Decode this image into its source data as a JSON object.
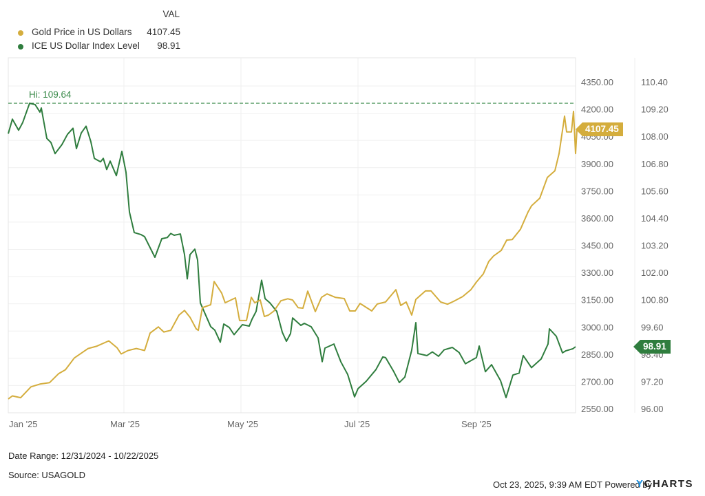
{
  "legend": {
    "header": "VAL",
    "series": [
      {
        "name": "Gold Price in US Dollars",
        "value": "4107.45",
        "color": "#d4ad3d"
      },
      {
        "name": "ICE US Dollar Index Level",
        "value": "98.91",
        "color": "#2f7d3e"
      }
    ]
  },
  "hi_label": "Hi: 109.64",
  "last_tags": {
    "gold": "4107.45",
    "usd": "98.91"
  },
  "footer": {
    "date_range": "Date Range: 12/31/2024 - 10/22/2025",
    "source": "Source: USAGOLD",
    "timestamp": "Oct 23, 2025, 9:39 AM EDT Powered by",
    "brand_y": "Y",
    "brand_rest": "CHARTS"
  },
  "chart_data": {
    "type": "line",
    "title": "",
    "x_ticks": [
      "Jan '25",
      "Mar '25",
      "May '25",
      "Jul '25",
      "Sep '25"
    ],
    "x_range": [
      "12/31/2024",
      "10/22/2025"
    ],
    "y_left": {
      "label": "Gold Price in US Dollars",
      "ticks": [
        "4350.00",
        "4200.00",
        "4050.00",
        "3900.00",
        "3750.00",
        "3600.00",
        "3450.00",
        "3300.00",
        "3150.00",
        "3000.00",
        "2850.00",
        "2700.00",
        "2550.00"
      ],
      "range": [
        2550,
        4350
      ]
    },
    "y_right": {
      "label": "ICE US Dollar Index Level",
      "ticks": [
        "110.40",
        "109.20",
        "108.00",
        "106.80",
        "105.60",
        "104.40",
        "103.20",
        "102.00",
        "100.80",
        "99.60",
        "98.40",
        "97.20",
        "96.00"
      ],
      "range": [
        96.0,
        110.4
      ]
    },
    "hi_line": {
      "series": "ICE US Dollar Index Level",
      "value": 109.64
    },
    "grid": true,
    "series": [
      {
        "name": "Gold Price in US Dollars",
        "axis": "left",
        "color": "#d4ad3d",
        "last": 4107.45,
        "x_pos": [
          12,
          18,
          30,
          45,
          58,
          72,
          85,
          95,
          108,
          118,
          128,
          140,
          158,
          170,
          176,
          186,
          198,
          210,
          218,
          230,
          238,
          248,
          260,
          268,
          276,
          285,
          288,
          294,
          306,
          311,
          322,
          327,
          342,
          348,
          358,
          365,
          370,
          378,
          384,
          390,
          398,
          408,
          418,
          425,
          433,
          440,
          447,
          458,
          467,
          475,
          487,
          500,
          508,
          516,
          523,
          540,
          548,
          560,
          575,
          582,
          590,
          598,
          604,
          618,
          626,
          640,
          650,
          659,
          672,
          684,
          692,
          702,
          710,
          717,
          728,
          736,
          744,
          756,
          767,
          772,
          784,
          795,
          806,
          812,
          818,
          820,
          823,
          830,
          833,
          836,
          838
        ],
        "values": [
          2626,
          2643,
          2633,
          2693,
          2708,
          2716,
          2765,
          2787,
          2852,
          2878,
          2904,
          2916,
          2946,
          2908,
          2874,
          2893,
          2904,
          2893,
          2989,
          3023,
          2995,
          3004,
          3088,
          3114,
          3076,
          3012,
          3004,
          3129,
          3145,
          3273,
          3209,
          3156,
          3183,
          3058,
          3058,
          3186,
          3156,
          3171,
          3080,
          3088,
          3111,
          3167,
          3178,
          3171,
          3129,
          3126,
          3220,
          3107,
          3186,
          3205,
          3186,
          3179,
          3111,
          3111,
          3152,
          3111,
          3149,
          3160,
          3228,
          3141,
          3160,
          3088,
          3174,
          3221,
          3221,
          3160,
          3148,
          3164,
          3190,
          3228,
          3270,
          3315,
          3384,
          3414,
          3444,
          3501,
          3504,
          3561,
          3656,
          3690,
          3732,
          3846,
          3883,
          3977,
          4131,
          4184,
          4097,
          4097,
          4210,
          3978,
          4107.45
        ]
      },
      {
        "name": "ICE US Dollar Index Level",
        "axis": "right",
        "color": "#2f7d3e",
        "last": 98.91,
        "x_pos": [
          12,
          18,
          27,
          33,
          43,
          51,
          58,
          60,
          68,
          74,
          80,
          90,
          98,
          106,
          111,
          118,
          125,
          132,
          137,
          146,
          150,
          155,
          160,
          169,
          177,
          183,
          188,
          195,
          205,
          210,
          225,
          235,
          243,
          248,
          253,
          262,
          268,
          272,
          276,
          283,
          287,
          291,
          306,
          312,
          320,
          325,
          333,
          340,
          352,
          362,
          366,
          372,
          380,
          385,
          392,
          402,
          410,
          416,
          422,
          425,
          437,
          442,
          452,
          462,
          468,
          472,
          485,
          495,
          505,
          515,
          520,
          532,
          546,
          556,
          560,
          572,
          580,
          588,
          598,
          604,
          607,
          620,
          628,
          637,
          645,
          657,
          667,
          676,
          692,
          696,
          705,
          714,
          727,
          735,
          745,
          754,
          760,
          772,
          786,
          796,
          798,
          808,
          817,
          822,
          832,
          836
        ],
        "values": [
          108.3,
          108.94,
          108.45,
          108.79,
          109.64,
          109.58,
          109.25,
          109.43,
          108.09,
          107.91,
          107.42,
          107.82,
          108.27,
          108.54,
          107.64,
          108.33,
          108.63,
          107.94,
          107.21,
          107.06,
          107.21,
          106.72,
          107.09,
          106.45,
          107.52,
          106.6,
          104.85,
          103.94,
          103.85,
          103.76,
          102.85,
          103.67,
          103.72,
          103.9,
          103.82,
          103.88,
          102.97,
          101.9,
          102.97,
          103.21,
          102.73,
          100.84,
          99.8,
          99.64,
          99.11,
          99.91,
          99.76,
          99.44,
          99.88,
          99.82,
          100.12,
          100.47,
          101.84,
          101.03,
          100.84,
          100.47,
          99.55,
          99.15,
          99.49,
          100.18,
          99.85,
          99.94,
          99.79,
          99.3,
          98.25,
          98.85,
          99.03,
          98.25,
          97.69,
          96.7,
          97.06,
          97.39,
          97.9,
          98.46,
          98.43,
          97.81,
          97.33,
          97.57,
          98.76,
          99.97,
          98.61,
          98.52,
          98.68,
          98.49,
          98.77,
          98.88,
          98.65,
          98.16,
          98.43,
          98.94,
          97.81,
          98.12,
          97.42,
          96.67,
          97.66,
          97.75,
          98.52,
          97.99,
          98.37,
          99.03,
          99.7,
          99.37,
          98.64,
          98.73,
          98.82,
          98.91
        ]
      }
    ]
  }
}
